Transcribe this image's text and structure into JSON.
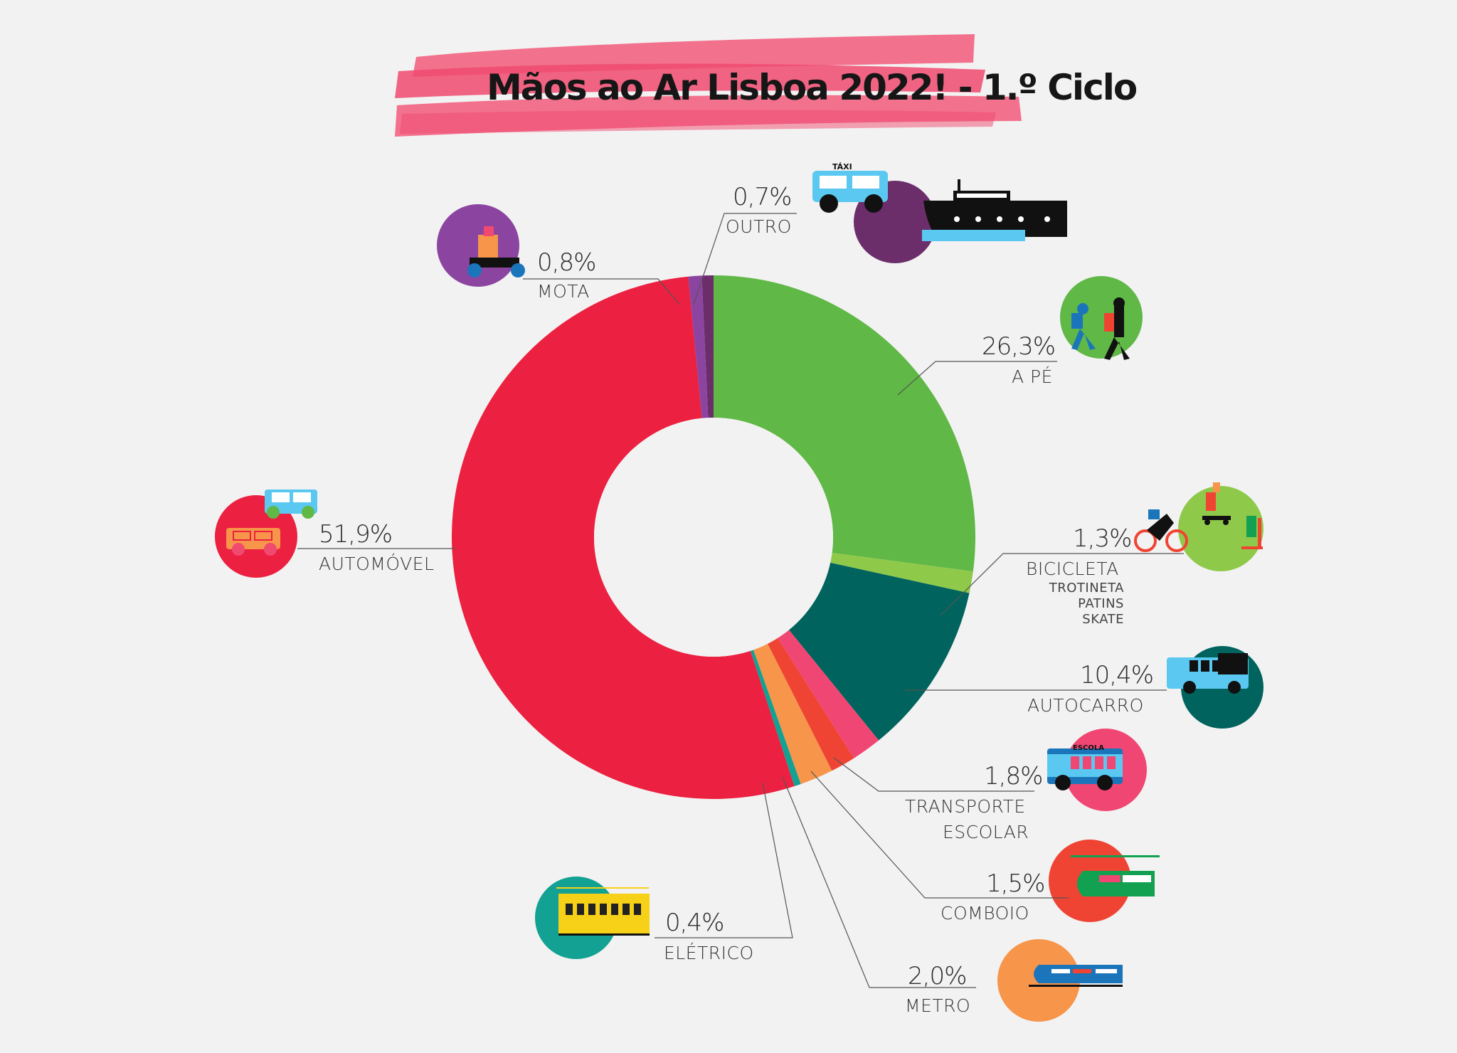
{
  "title": "Mãos ao Ar Lisboa 2022! - 1.º Ciclo",
  "colors": {
    "background": "#f2f2f2",
    "title_banner": "#f25b7b"
  },
  "chart_data": {
    "type": "pie",
    "donut": true,
    "title": "Mãos ao Ar Lisboa 2022! - 1.º Ciclo",
    "unit": "%",
    "series": [
      {
        "key": "ape",
        "name": "A PÉ",
        "value": 26.3,
        "label": "26,3%",
        "color": "#60b846",
        "icon": "walking-children-icon"
      },
      {
        "key": "bicicleta",
        "name": "BICICLETA",
        "value": 1.3,
        "label": "1,3%",
        "color": "#8fc94a",
        "icon": "bicycle-scooter-skate-icon",
        "sublabels": [
          "TROTINETA",
          "PATINS",
          "SKATE"
        ]
      },
      {
        "key": "autocarro",
        "name": "AUTOCARRO",
        "value": 10.4,
        "label": "10,4%",
        "color": "#00635e",
        "icon": "bus-icon"
      },
      {
        "key": "transporte",
        "name": "TRANSPORTE ESCOLAR",
        "value": 1.8,
        "label": "1,8%",
        "color": "#f04673",
        "icon": "school-bus-icon",
        "lines": [
          "TRANSPORTE",
          "ESCOLAR"
        ],
        "icon_text": "ESCOLA"
      },
      {
        "key": "comboio",
        "name": "COMBOIO",
        "value": 1.5,
        "label": "1,5%",
        "color": "#ef4433",
        "icon": "train-icon"
      },
      {
        "key": "metro",
        "name": "METRO",
        "value": 2.0,
        "label": "2,0%",
        "color": "#f7954a",
        "icon": "metro-icon"
      },
      {
        "key": "eletrico",
        "name": "ELÉTRICO",
        "value": 0.4,
        "label": "0,4%",
        "color": "#12a192",
        "icon": "tram-icon"
      },
      {
        "key": "automovel",
        "name": "AUTOMÓVEL",
        "value": 51.9,
        "label": "51,9%",
        "color": "#ec2040",
        "icon": "car-icon"
      },
      {
        "key": "mota",
        "name": "MOTA",
        "value": 0.8,
        "label": "0,8%",
        "color": "#8b45a0",
        "icon": "motorbike-icon"
      },
      {
        "key": "outro",
        "name": "OUTRO",
        "value": 0.7,
        "label": "0,7%",
        "color": "#6b2e6b",
        "icon": "taxi-boat-icon",
        "icon_text": "TÁXI"
      }
    ]
  }
}
